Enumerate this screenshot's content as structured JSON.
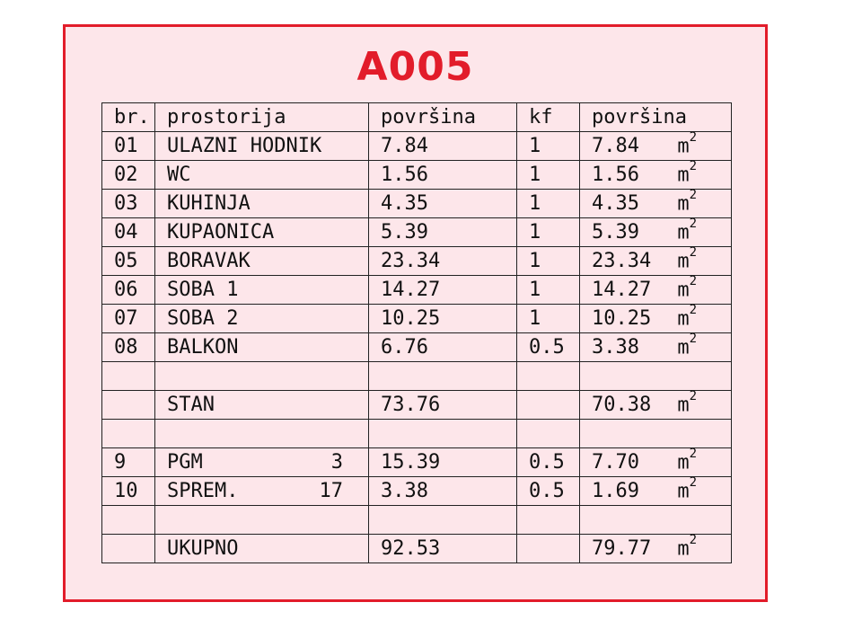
{
  "title": "A005",
  "header": {
    "num": "br.",
    "room": "prostorija",
    "area": "površina",
    "kf": "kf",
    "net_area": "površina"
  },
  "unit": "m",
  "unit_sup": "2",
  "rows": [
    {
      "num": "01",
      "room": "ULAZNI HODNIK",
      "code": "",
      "area": "7.84",
      "kf": "1",
      "net": "7.84",
      "unit": true
    },
    {
      "num": "02",
      "room": "WC",
      "code": "",
      "area": "1.56",
      "kf": "1",
      "net": "1.56",
      "unit": true
    },
    {
      "num": "03",
      "room": "KUHINJA",
      "code": "",
      "area": "4.35",
      "kf": "1",
      "net": "4.35",
      "unit": true
    },
    {
      "num": "04",
      "room": "KUPAONICA",
      "code": "",
      "area": "5.39",
      "kf": "1",
      "net": "5.39",
      "unit": true
    },
    {
      "num": "05",
      "room": "BORAVAK",
      "code": "",
      "area": "23.34",
      "kf": "1",
      "net": "23.34",
      "unit": true
    },
    {
      "num": "06",
      "room": "SOBA 1",
      "code": "",
      "area": "14.27",
      "kf": "1",
      "net": "14.27",
      "unit": true
    },
    {
      "num": "07",
      "room": "SOBA 2",
      "code": "",
      "area": "10.25",
      "kf": "1",
      "net": "10.25",
      "unit": true
    },
    {
      "num": "08",
      "room": "BALKON",
      "code": "",
      "area": "6.76",
      "kf": "0.5",
      "net": "3.38",
      "unit": true
    },
    {
      "num": "",
      "room": "",
      "code": "",
      "area": "",
      "kf": "",
      "net": "",
      "unit": false
    },
    {
      "num": "",
      "room": "STAN",
      "code": "",
      "area": "73.76",
      "kf": "",
      "net": "70.38",
      "unit": true
    },
    {
      "num": "",
      "room": "",
      "code": "",
      "area": "",
      "kf": "",
      "net": "",
      "unit": false
    },
    {
      "num": "9",
      "room": "PGM",
      "code": "3",
      "area": "15.39",
      "kf": "0.5",
      "net": "7.70",
      "unit": true
    },
    {
      "num": "10",
      "room": "SPREM.",
      "code": "17",
      "area": "3.38",
      "kf": "0.5",
      "net": "1.69",
      "unit": true
    },
    {
      "num": "",
      "room": "",
      "code": "",
      "area": "",
      "kf": "",
      "net": "",
      "unit": false
    },
    {
      "num": "",
      "room": "UKUPNO",
      "code": "",
      "area": "92.53",
      "kf": "",
      "net": "79.77",
      "unit": true
    }
  ]
}
